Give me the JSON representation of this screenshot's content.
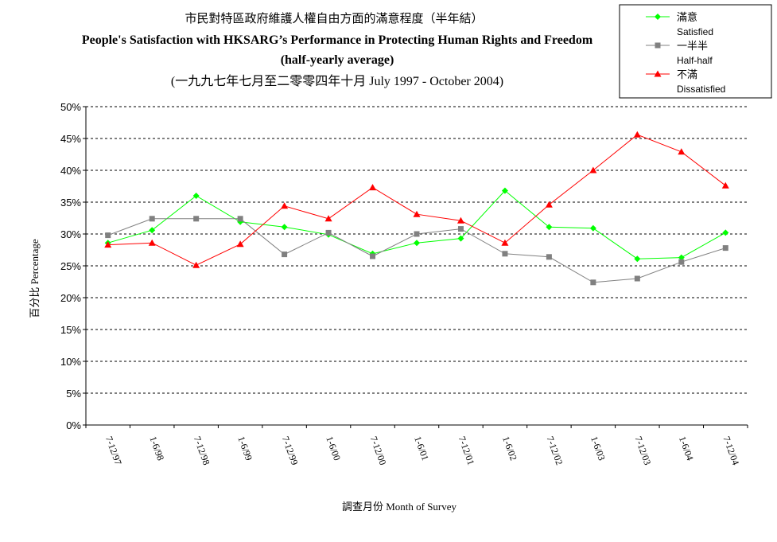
{
  "chart_data": {
    "type": "line",
    "title_zh": "市民對特區政府維護人權自由方面的滿意程度（半年結）",
    "title_en": "People's Satisfaction with HKSARG’s Performance in Protecting Human Rights and Freedom",
    "subtitle": "(half-yearly average)",
    "period": "(一九九七年七月至二零零四年十月 July 1997 - October 2004)",
    "ylabel": "百分比 Percentage",
    "xlabel": "調查月份 Month of Survey",
    "ylim": [
      0,
      50
    ],
    "yticks": [
      "0%",
      "5%",
      "10%",
      "15%",
      "20%",
      "25%",
      "30%",
      "35%",
      "40%",
      "45%",
      "50%"
    ],
    "grid": true,
    "legend_position": "top-right",
    "categories": [
      "7-12/97",
      "1-6/98",
      "7-12/98",
      "1-6/99",
      "7-12/99",
      "1-6/00",
      "7-12/00",
      "1-6/01",
      "7-12/01",
      "1-6/02",
      "7-12/02",
      "1-6/03",
      "7-12/03",
      "1-6/04",
      "7-12/04"
    ],
    "series": [
      {
        "name": "滿意",
        "name_en": "Satisfied",
        "color": "#00ff00",
        "marker": "diamond",
        "values": [
          28.6,
          30.6,
          36.0,
          31.9,
          31.1,
          29.9,
          26.9,
          28.6,
          29.3,
          36.8,
          31.1,
          30.9,
          26.1,
          26.3,
          30.2
        ]
      },
      {
        "name": "一半半",
        "name_en": "Half-half",
        "color": "#808080",
        "marker": "square",
        "values": [
          29.8,
          32.4,
          32.4,
          32.4,
          26.8,
          30.2,
          26.5,
          30.0,
          30.8,
          26.9,
          26.4,
          22.4,
          23.0,
          25.6,
          27.8
        ]
      },
      {
        "name": "不滿",
        "name_en": "Dissatisfied",
        "color": "#ff0000",
        "marker": "triangle",
        "values": [
          28.3,
          28.6,
          25.1,
          28.4,
          34.4,
          32.4,
          37.3,
          33.1,
          32.1,
          28.6,
          34.6,
          40.0,
          45.6,
          42.9,
          37.6
        ]
      }
    ]
  }
}
